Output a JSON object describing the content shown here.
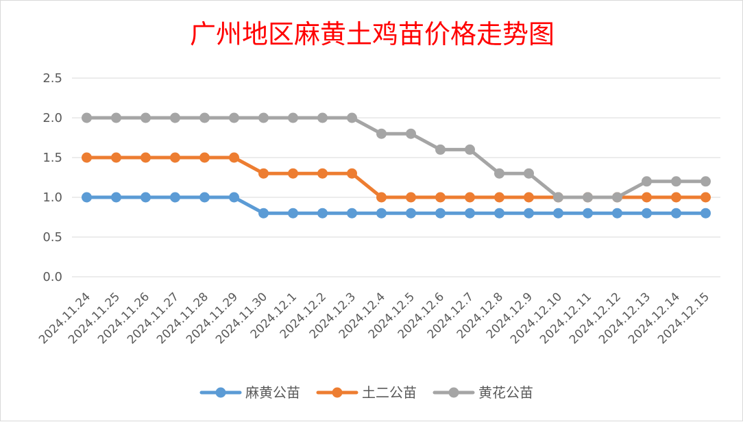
{
  "chart_data": {
    "type": "line",
    "title": "广州地区麻黄土鸡苗价格走势图",
    "xlabel": "",
    "ylabel": "",
    "ylim": [
      0,
      2.5
    ],
    "yticks": [
      "0.0",
      "0.5",
      "1.0",
      "1.5",
      "2.0",
      "2.5"
    ],
    "grid": true,
    "legend_position": "bottom",
    "categories": [
      "2024.11.24",
      "2024.11.25",
      "2024.11.26",
      "2024.11.27",
      "2024.11.28",
      "2024.11.29",
      "2024.11.30",
      "2024.12.1",
      "2024.12.2",
      "2024.12.3",
      "2024.12.4",
      "2024.12.5",
      "2024.12.6",
      "2024.12.7",
      "2024.12.8",
      "2024.12.9",
      "2024.12.10",
      "2024.12.11",
      "2024.12.12",
      "2024.12.13",
      "2024.12.14",
      "2024.12.15"
    ],
    "series": [
      {
        "name": "麻黄公苗",
        "color": "#5b9bd5",
        "values": [
          1.0,
          1.0,
          1.0,
          1.0,
          1.0,
          1.0,
          0.8,
          0.8,
          0.8,
          0.8,
          0.8,
          0.8,
          0.8,
          0.8,
          0.8,
          0.8,
          0.8,
          0.8,
          0.8,
          0.8,
          0.8,
          0.8
        ]
      },
      {
        "name": "土二公苗",
        "color": "#ed7d31",
        "values": [
          1.5,
          1.5,
          1.5,
          1.5,
          1.5,
          1.5,
          1.3,
          1.3,
          1.3,
          1.3,
          1.0,
          1.0,
          1.0,
          1.0,
          1.0,
          1.0,
          1.0,
          1.0,
          1.0,
          1.0,
          1.0,
          1.0
        ]
      },
      {
        "name": "黄花公苗",
        "color": "#a5a5a5",
        "values": [
          2.0,
          2.0,
          2.0,
          2.0,
          2.0,
          2.0,
          2.0,
          2.0,
          2.0,
          2.0,
          1.8,
          1.8,
          1.6,
          1.6,
          1.3,
          1.3,
          1.0,
          1.0,
          1.0,
          1.2,
          1.2,
          1.2
        ]
      }
    ]
  },
  "colors": {
    "title": "#ff0000",
    "grid": "#d9d9d9",
    "tick_text": "#595959"
  }
}
